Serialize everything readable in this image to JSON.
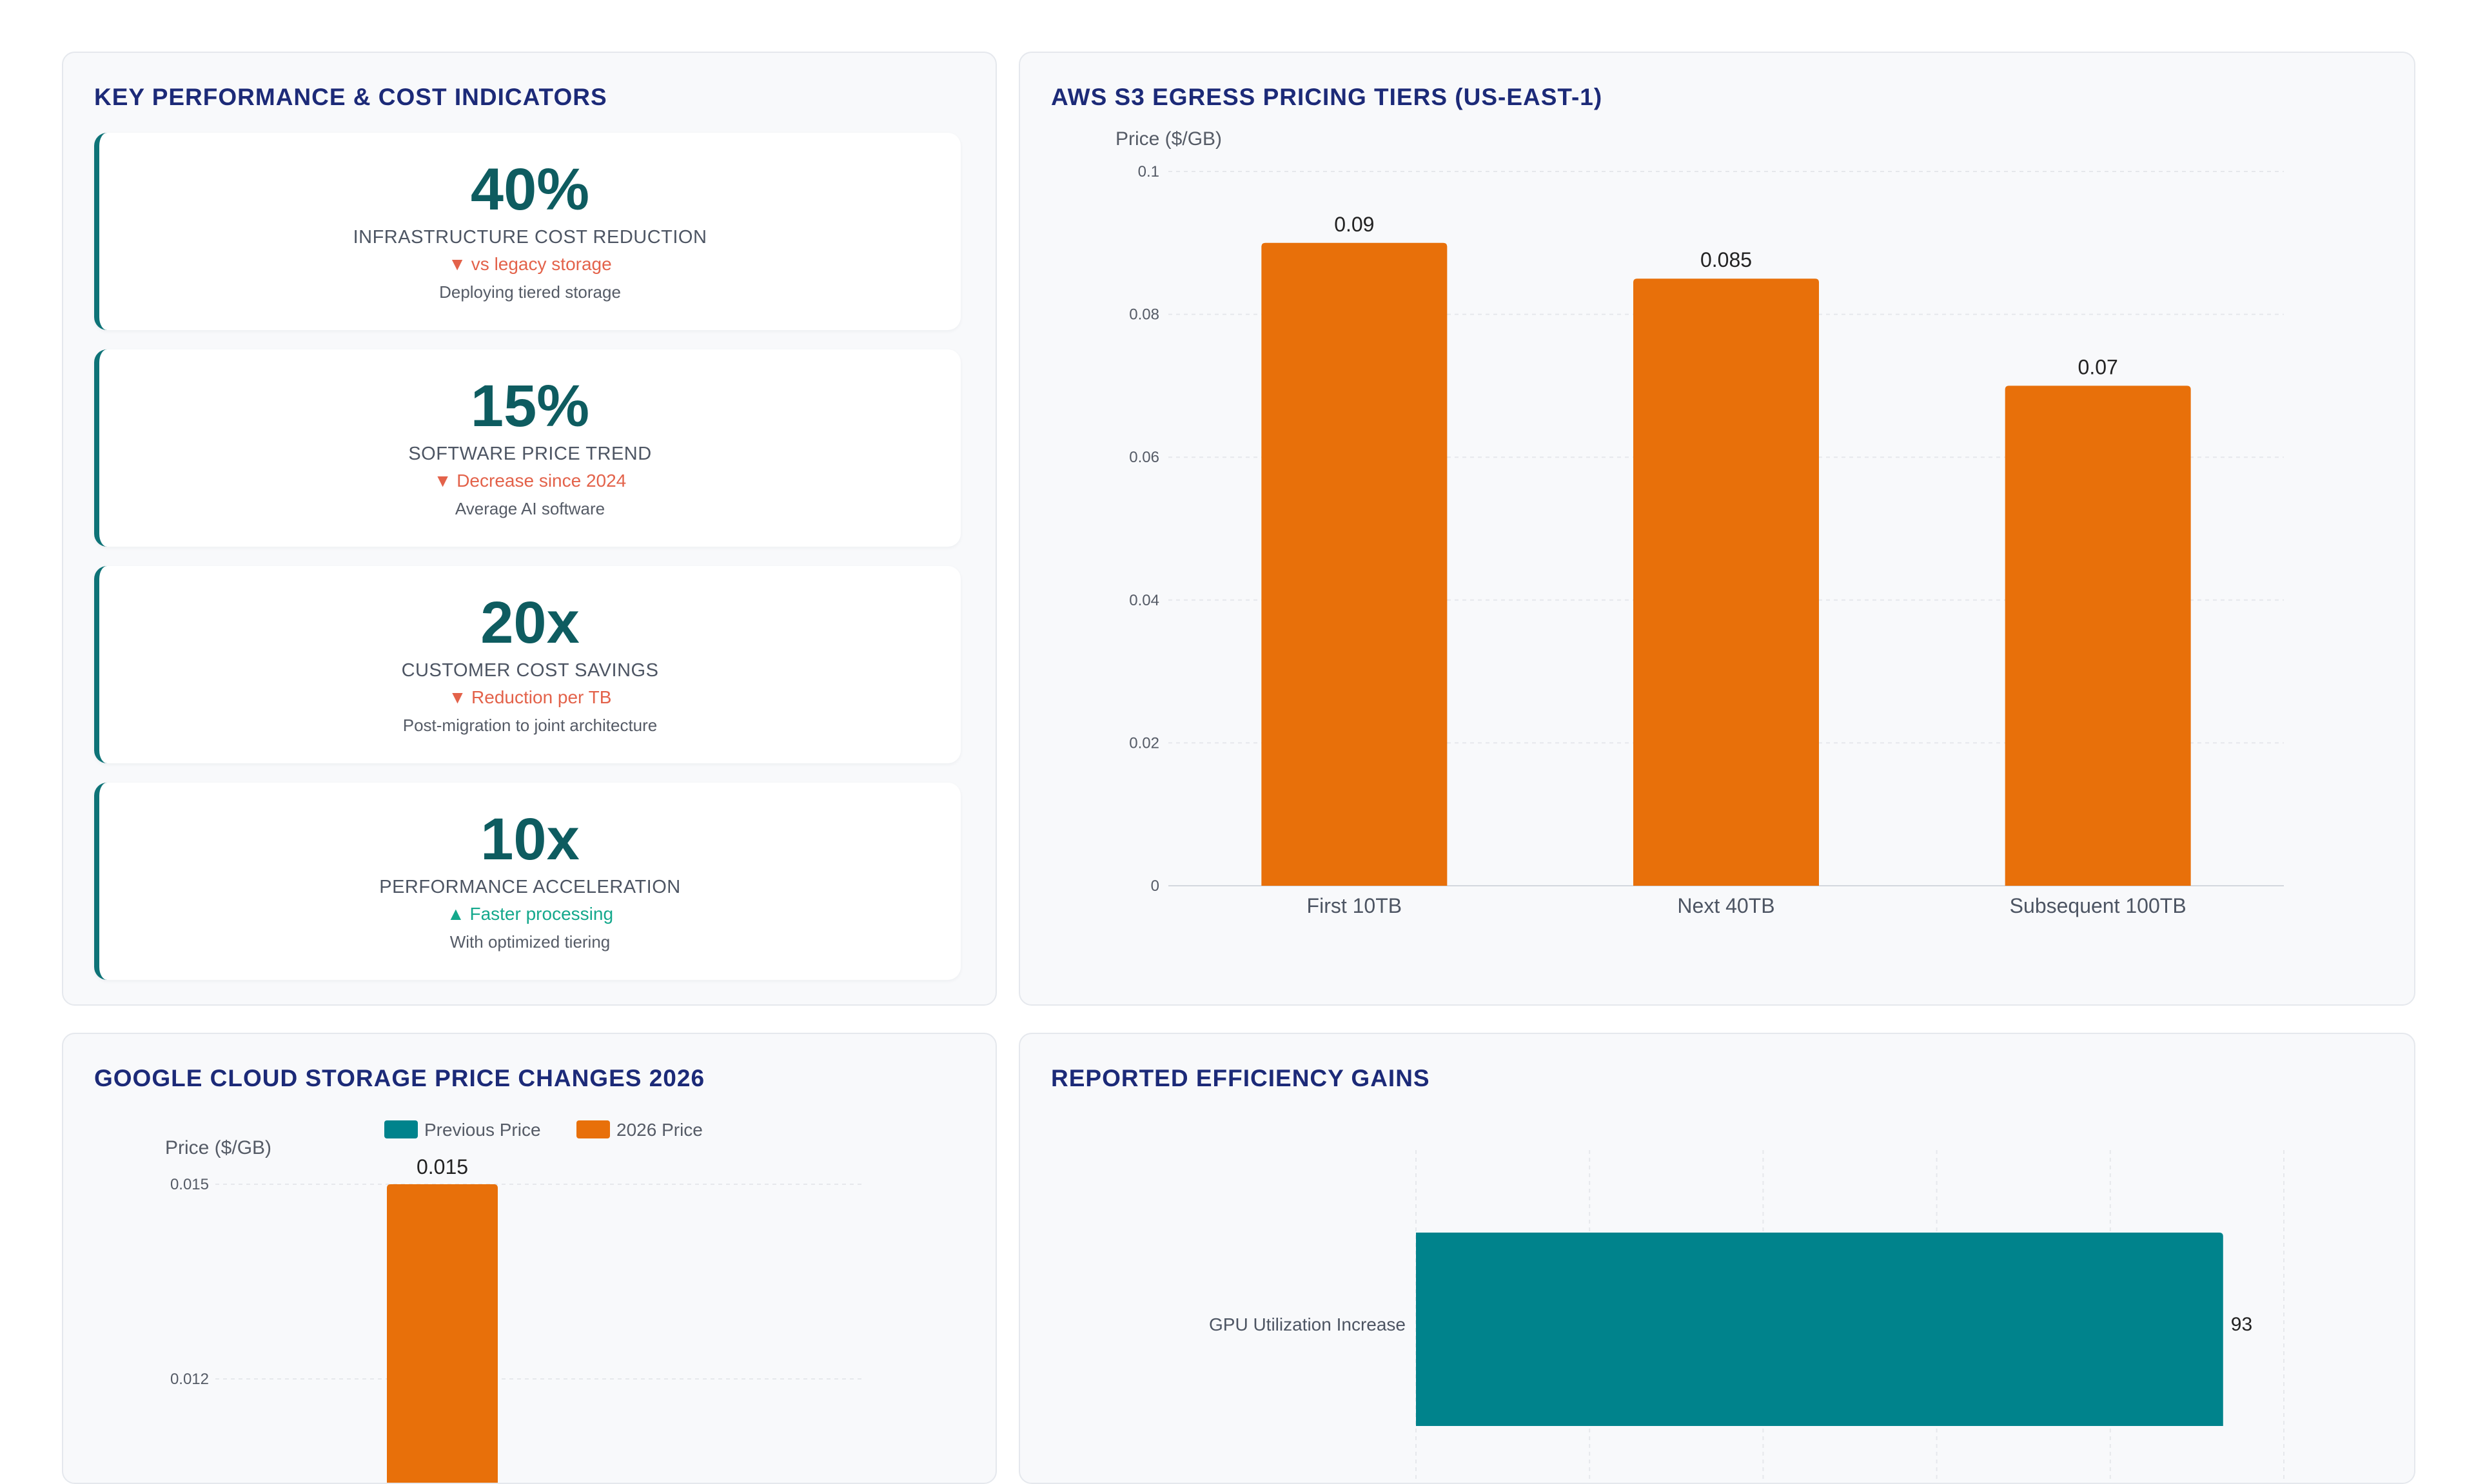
{
  "kpi_panel": {
    "title": "KEY PERFORMANCE & COST INDICATORS",
    "cards": [
      {
        "value": "40%",
        "label": "INFRASTRUCTURE COST REDUCTION",
        "change": "▼ vs legacy storage",
        "direction": "down",
        "note": "Deploying tiered storage"
      },
      {
        "value": "15%",
        "label": "SOFTWARE PRICE TREND",
        "change": "▼ Decrease since 2024",
        "direction": "down",
        "note": "Average AI software"
      },
      {
        "value": "20x",
        "label": "CUSTOMER COST SAVINGS",
        "change": "▼ Reduction per TB",
        "direction": "down",
        "note": "Post-migration to joint architecture"
      },
      {
        "value": "10x",
        "label": "PERFORMANCE ACCELERATION",
        "change": "▲ Faster processing",
        "direction": "up",
        "note": "With optimized tiering"
      }
    ]
  },
  "colors": {
    "teal": "#00838c",
    "orange": "#e8700a",
    "title_navy": "#1c2a78",
    "down": "#e3624a",
    "up": "#14a88c"
  },
  "chart_data": [
    {
      "id": "aws",
      "type": "bar",
      "title": "AWS S3 EGRESS PRICING TIERS (US-EAST-1)",
      "ylabel": "Price ($/GB)",
      "xlabel": "",
      "categories": [
        "First 10TB",
        "Next 40TB",
        "Subsequent 100TB"
      ],
      "values": [
        0.09,
        0.085,
        0.07
      ],
      "value_labels": [
        "0.09",
        "0.085",
        "0.07"
      ],
      "ylim": [
        0,
        0.1
      ],
      "yticks": [
        "0",
        "0.02",
        "0.04",
        "0.06",
        "0.08",
        "0.1"
      ],
      "grid": true,
      "color": "#e8700a"
    },
    {
      "id": "gcs",
      "type": "bar",
      "title": "GOOGLE CLOUD STORAGE PRICE CHANGES 2026",
      "ylabel": "Price ($/GB)",
      "legend_position": "top",
      "series": [
        {
          "name": "Previous Price",
          "color": "#00838c"
        },
        {
          "name": "2026 Price",
          "color": "#e8700a"
        }
      ],
      "visible_value_label": "0.015",
      "visible_bar_value": 0.015,
      "yticks": [
        "0.015",
        "0.012"
      ],
      "grid": true
    },
    {
      "id": "eff",
      "type": "bar",
      "orientation": "horizontal",
      "title": "REPORTED EFFICIENCY GAINS",
      "categories": [
        "GPU Utilization Increase"
      ],
      "values": [
        93
      ],
      "value_labels": [
        "93"
      ],
      "xlim": [
        0,
        100
      ],
      "grid": true,
      "color": "#00838c"
    }
  ]
}
